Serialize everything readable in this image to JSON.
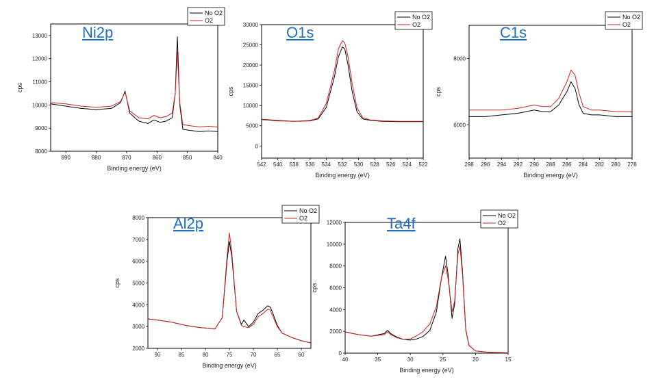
{
  "chart_data": [
    {
      "type": "line",
      "title": "Ni2p",
      "xlabel": "Binding energy (eV)",
      "ylabel": "cps",
      "xlim": [
        895,
        840
      ],
      "ylim": [
        8000,
        13500
      ],
      "xticks": [
        890,
        880,
        870,
        860,
        850,
        840
      ],
      "yticks": [
        8000,
        9000,
        10000,
        11000,
        12000,
        13000
      ],
      "legend_position": "top-right",
      "colors": {
        "No O2": "#000000",
        "O2": "#cc1f1f"
      },
      "series": [
        {
          "name": "No O2",
          "x": [
            895,
            890,
            885,
            880,
            875,
            872,
            870.5,
            869,
            866,
            863,
            861,
            859,
            857,
            855,
            854,
            853.3,
            852.5,
            851.5,
            849,
            846,
            843,
            840
          ],
          "y": [
            10050,
            9950,
            9850,
            9800,
            9850,
            10100,
            10600,
            9650,
            9300,
            9200,
            9350,
            9250,
            9300,
            9450,
            10500,
            12950,
            10000,
            8950,
            8900,
            8850,
            8880,
            8850
          ]
        },
        {
          "name": "O2",
          "x": [
            895,
            890,
            885,
            880,
            875,
            872,
            870.5,
            869,
            866,
            863,
            861,
            859,
            857,
            855,
            854,
            853.3,
            852.5,
            851.5,
            849,
            846,
            843,
            840
          ],
          "y": [
            10100,
            10050,
            9950,
            9900,
            9950,
            10150,
            10550,
            9750,
            9450,
            9400,
            9550,
            9450,
            9500,
            9650,
            10500,
            12300,
            10100,
            9150,
            9100,
            9050,
            9080,
            9050
          ]
        }
      ]
    },
    {
      "type": "line",
      "title": "O1s",
      "xlabel": "Binding energy (eV)",
      "ylabel": "cps",
      "xlim": [
        542,
        522
      ],
      "ylim": [
        -3000,
        30000
      ],
      "xticks": [
        542,
        540,
        538,
        536,
        534,
        532,
        530,
        528,
        526,
        524,
        522
      ],
      "yticks": [
        0,
        5000,
        10000,
        15000,
        20000,
        25000,
        30000
      ],
      "legend_position": "top-right",
      "colors": {
        "No O2": "#000000",
        "O2": "#cc1f1f"
      },
      "series": [
        {
          "name": "No O2",
          "x": [
            542,
            540,
            538,
            536,
            535,
            534,
            533,
            532.5,
            532,
            531.7,
            531.3,
            530.8,
            530.2,
            529.5,
            528.5,
            527,
            525,
            522
          ],
          "y": [
            6600,
            6300,
            6100,
            6200,
            6700,
            9500,
            17000,
            22000,
            24500,
            24000,
            20000,
            13500,
            8500,
            6700,
            6300,
            6100,
            6000,
            6000
          ]
        },
        {
          "name": "O2",
          "x": [
            542,
            540,
            538,
            536,
            535,
            534,
            533,
            532.5,
            532,
            531.7,
            531.3,
            530.8,
            530.2,
            529.5,
            528.5,
            527,
            525,
            522
          ],
          "y": [
            6500,
            6200,
            6100,
            6300,
            6900,
            10500,
            18500,
            24000,
            26000,
            25500,
            22000,
            15500,
            9500,
            7000,
            6400,
            6200,
            6100,
            6100
          ]
        }
      ]
    },
    {
      "type": "line",
      "title": "C1s",
      "xlabel": "Binding energy (eV)",
      "ylabel": "cps",
      "xlim": [
        298,
        278
      ],
      "ylim": [
        5000,
        9000
      ],
      "xticks": [
        298,
        296,
        294,
        292,
        290,
        288,
        286,
        284,
        282,
        280,
        278
      ],
      "yticks": [
        6000,
        8000
      ],
      "legend_position": "top-right",
      "colors": {
        "No O2": "#000000",
        "O2": "#cc1f1f"
      },
      "series": [
        {
          "name": "No O2",
          "x": [
            298,
            296,
            294,
            292,
            290,
            289,
            288,
            287,
            286,
            285.5,
            285,
            284.5,
            284,
            283,
            282,
            280,
            278
          ],
          "y": [
            6250,
            6250,
            6300,
            6350,
            6450,
            6400,
            6400,
            6600,
            7000,
            7300,
            7100,
            6600,
            6350,
            6300,
            6300,
            6250,
            6250
          ]
        },
        {
          "name": "O2",
          "x": [
            298,
            296,
            294,
            292,
            290,
            289,
            288,
            287,
            286,
            285.5,
            285,
            284.5,
            284,
            283,
            282,
            280,
            278
          ],
          "y": [
            6450,
            6450,
            6450,
            6500,
            6600,
            6550,
            6550,
            6800,
            7300,
            7650,
            7500,
            6950,
            6550,
            6450,
            6450,
            6400,
            6400
          ]
        }
      ]
    },
    {
      "type": "line",
      "title": "Al2p",
      "xlabel": "Binding energy (eV)",
      "ylabel": "cps",
      "xlim": [
        92,
        58
      ],
      "ylim": [
        2000,
        8000
      ],
      "xticks": [
        90,
        85,
        80,
        75,
        70,
        65,
        60
      ],
      "yticks": [
        2000,
        3000,
        4000,
        5000,
        6000,
        7000,
        8000
      ],
      "legend_position": "top-right",
      "colors": {
        "No O2": "#000000",
        "O2": "#cc1f1f"
      },
      "series": [
        {
          "name": "No O2",
          "x": [
            92,
            90,
            87,
            84,
            81,
            78,
            76.5,
            75.5,
            75,
            74.5,
            73.5,
            72.5,
            72,
            71,
            70,
            69,
            68,
            67,
            66.5,
            66,
            65,
            64,
            62,
            60,
            58
          ],
          "y": [
            3350,
            3300,
            3200,
            3050,
            2950,
            2900,
            3400,
            6000,
            6900,
            6200,
            3700,
            3100,
            3300,
            3000,
            3200,
            3600,
            3750,
            3950,
            3900,
            3650,
            3050,
            2700,
            2500,
            2350,
            2250
          ]
        },
        {
          "name": "O2",
          "x": [
            92,
            90,
            87,
            84,
            81,
            78,
            76.5,
            75.5,
            75,
            74.5,
            73.5,
            72.5,
            72,
            71,
            70,
            69,
            68,
            67,
            66.5,
            66,
            65,
            64,
            62,
            60,
            58
          ],
          "y": [
            3350,
            3300,
            3200,
            3050,
            2950,
            2900,
            3400,
            6200,
            7300,
            6400,
            3700,
            3050,
            3000,
            2950,
            3100,
            3450,
            3600,
            3800,
            3750,
            3500,
            3000,
            2700,
            2500,
            2350,
            2250
          ]
        }
      ]
    },
    {
      "type": "line",
      "title": "Ta4f",
      "xlabel": "Binding energy (eV)",
      "ylabel": "cps",
      "xlim": [
        40,
        15
      ],
      "ylim": [
        0,
        12000
      ],
      "xticks": [
        40,
        35,
        30,
        25,
        20,
        15
      ],
      "yticks": [
        0,
        2000,
        4000,
        6000,
        8000,
        10000,
        12000
      ],
      "legend_position": "top-right",
      "colors": {
        "No O2": "#000000",
        "O2": "#cc1f1f"
      },
      "series": [
        {
          "name": "No O2",
          "x": [
            40,
            38,
            36,
            34,
            33.5,
            33,
            32,
            31,
            30,
            29,
            28,
            27,
            26,
            25.2,
            24.6,
            24.2,
            23.6,
            23.2,
            22.7,
            22.4,
            22,
            21.5,
            21,
            20,
            18,
            15
          ],
          "y": [
            1950,
            1700,
            1550,
            1800,
            2100,
            1800,
            1450,
            1250,
            1200,
            1300,
            1550,
            2100,
            3800,
            7000,
            8900,
            7200,
            3200,
            4500,
            9600,
            10500,
            7500,
            2200,
            700,
            200,
            80,
            30
          ]
        },
        {
          "name": "O2",
          "x": [
            40,
            38,
            36,
            34,
            33.5,
            33,
            32,
            31,
            30,
            29,
            28,
            27,
            26,
            25.2,
            24.6,
            24.2,
            23.6,
            23.2,
            22.7,
            22.4,
            22,
            21.5,
            21,
            20,
            18,
            15
          ],
          "y": [
            1950,
            1700,
            1550,
            1700,
            1950,
            1700,
            1400,
            1250,
            1300,
            1600,
            2000,
            2700,
            4300,
            7000,
            8000,
            6800,
            3800,
            4800,
            9100,
            9800,
            7200,
            2100,
            700,
            200,
            80,
            30
          ]
        }
      ]
    }
  ]
}
